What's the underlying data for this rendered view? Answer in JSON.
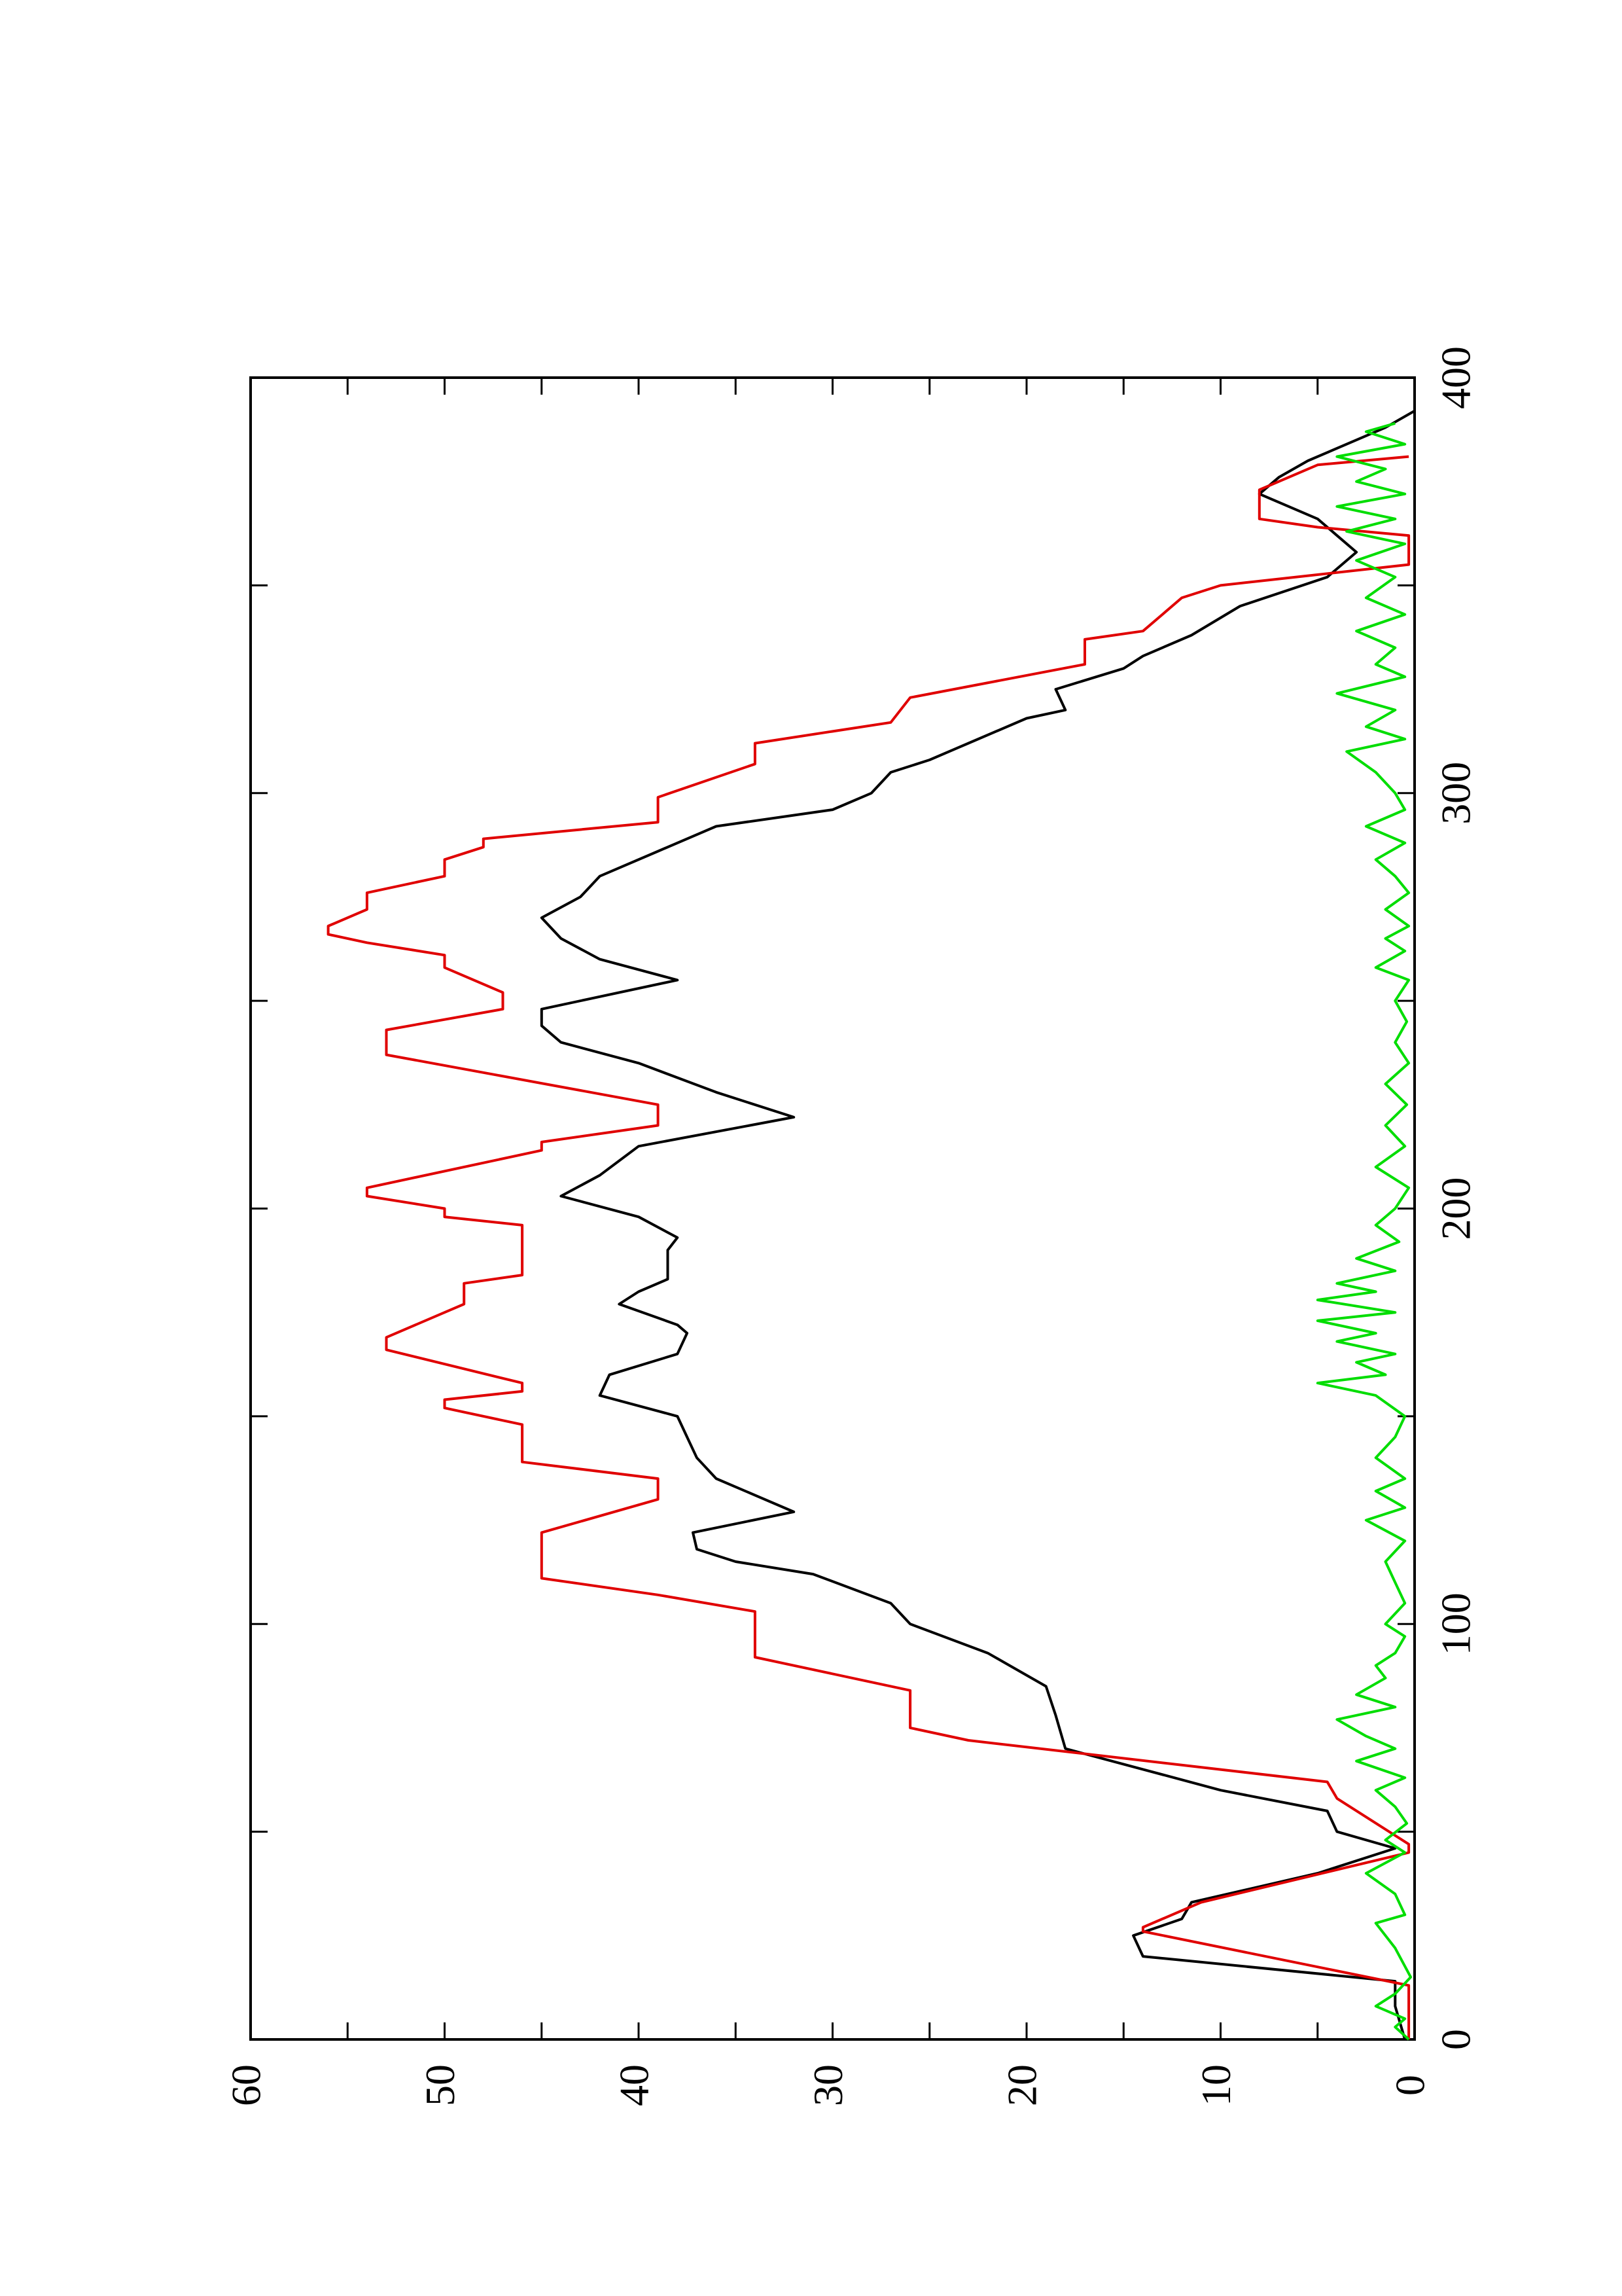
{
  "chart_data": {
    "type": "line",
    "title": "",
    "xlabel": "",
    "ylabel": "",
    "xlim": [
      0,
      400
    ],
    "ylim": [
      0,
      60
    ],
    "x_ticks": [
      "0",
      "100",
      "200",
      "300",
      "400"
    ],
    "y_ticks": [
      "0",
      "10",
      "20",
      "30",
      "40",
      "50",
      "60"
    ],
    "grid": false,
    "legend": "none",
    "orientation_note": "page rotated 90 degrees counter-clockwise",
    "series": [
      {
        "color": "#000000",
        "points": [
          [
            0,
            0.5
          ],
          [
            8,
            1
          ],
          [
            14,
            1
          ],
          [
            20,
            14
          ],
          [
            25,
            14.5
          ],
          [
            29,
            12
          ],
          [
            33,
            11.5
          ],
          [
            40,
            5
          ],
          [
            46,
            1
          ],
          [
            50,
            4
          ],
          [
            55,
            4.5
          ],
          [
            60,
            10
          ],
          [
            65,
            14
          ],
          [
            70,
            18
          ],
          [
            78,
            18.5
          ],
          [
            85,
            19
          ],
          [
            93,
            22
          ],
          [
            100,
            26
          ],
          [
            105,
            27
          ],
          [
            112,
            31
          ],
          [
            115,
            35
          ],
          [
            118,
            37
          ],
          [
            122,
            37.2
          ],
          [
            127,
            32
          ],
          [
            135,
            36
          ],
          [
            140,
            37
          ],
          [
            145,
            37.5
          ],
          [
            150,
            38
          ],
          [
            155,
            42
          ],
          [
            160,
            41.5
          ],
          [
            165,
            38
          ],
          [
            170,
            37.5
          ],
          [
            172,
            38
          ],
          [
            177,
            41
          ],
          [
            180,
            40
          ],
          [
            183,
            38.5
          ],
          [
            190,
            38.5
          ],
          [
            193,
            38
          ],
          [
            198,
            40
          ],
          [
            203,
            44
          ],
          [
            208,
            42
          ],
          [
            215,
            40
          ],
          [
            222,
            32
          ],
          [
            228,
            36
          ],
          [
            235,
            40
          ],
          [
            240,
            44
          ],
          [
            244,
            45
          ],
          [
            248,
            45
          ],
          [
            255,
            38
          ],
          [
            260,
            42
          ],
          [
            265,
            44
          ],
          [
            270,
            45
          ],
          [
            275,
            43
          ],
          [
            280,
            42
          ],
          [
            286,
            39
          ],
          [
            292,
            36
          ],
          [
            296,
            30
          ],
          [
            300,
            28
          ],
          [
            305,
            27
          ],
          [
            308,
            25
          ],
          [
            312,
            23
          ],
          [
            318,
            20
          ],
          [
            320,
            18
          ],
          [
            325,
            18.5
          ],
          [
            330,
            15
          ],
          [
            333,
            14
          ],
          [
            338,
            11.5
          ],
          [
            345,
            9
          ],
          [
            352,
            4.5
          ],
          [
            358,
            3
          ],
          [
            362,
            4
          ],
          [
            366,
            5
          ],
          [
            372,
            8
          ],
          [
            376,
            7
          ],
          [
            380,
            5.5
          ],
          [
            388,
            1.5
          ],
          [
            392,
            0
          ]
        ]
      },
      {
        "color": "#e00000",
        "points": [
          [
            0,
            0.3
          ],
          [
            13,
            0.3
          ],
          [
            26,
            14
          ],
          [
            27,
            14
          ],
          [
            33,
            11
          ],
          [
            45,
            0.3
          ],
          [
            47,
            0.3
          ],
          [
            58,
            4
          ],
          [
            62,
            4.5
          ],
          [
            72,
            23
          ],
          [
            75,
            26
          ],
          [
            84,
            26
          ],
          [
            92,
            34
          ],
          [
            103,
            34
          ],
          [
            107,
            39
          ],
          [
            111,
            45
          ],
          [
            122,
            45
          ],
          [
            130,
            39
          ],
          [
            135,
            39
          ],
          [
            139,
            46
          ],
          [
            148,
            46
          ],
          [
            152,
            50
          ],
          [
            154,
            50
          ],
          [
            156,
            46
          ],
          [
            158,
            46
          ],
          [
            166,
            53
          ],
          [
            169,
            53
          ],
          [
            175,
            50
          ],
          [
            177,
            49
          ],
          [
            182,
            49
          ],
          [
            184,
            46
          ],
          [
            196,
            46
          ],
          [
            198,
            50
          ],
          [
            200,
            50
          ],
          [
            203,
            54
          ],
          [
            205,
            54
          ],
          [
            214,
            45
          ],
          [
            216,
            45
          ],
          [
            220,
            39
          ],
          [
            225,
            39
          ],
          [
            237,
            53
          ],
          [
            243,
            53
          ],
          [
            248,
            47
          ],
          [
            252,
            47
          ],
          [
            258,
            50
          ],
          [
            261,
            50
          ],
          [
            264,
            54
          ],
          [
            266,
            56
          ],
          [
            268,
            56
          ],
          [
            272,
            54
          ],
          [
            276,
            54
          ],
          [
            280,
            50
          ],
          [
            284,
            50
          ],
          [
            287,
            48
          ],
          [
            289,
            48
          ],
          [
            293,
            39
          ],
          [
            299,
            39
          ],
          [
            307,
            34
          ],
          [
            312,
            34
          ],
          [
            317,
            27
          ],
          [
            323,
            26
          ],
          [
            331,
            17
          ],
          [
            337,
            17
          ],
          [
            339,
            14
          ],
          [
            347,
            12
          ],
          [
            350,
            10
          ],
          [
            355,
            0.3
          ],
          [
            362,
            0.3
          ],
          [
            364,
            5
          ],
          [
            366,
            8
          ],
          [
            373,
            8
          ],
          [
            379,
            5
          ],
          [
            381,
            0.3
          ]
        ]
      },
      {
        "color": "#00dd00",
        "points": [
          [
            0,
            0.3
          ],
          [
            3,
            1
          ],
          [
            5,
            0.5
          ],
          [
            8,
            2
          ],
          [
            11,
            1
          ],
          [
            15,
            0.2
          ],
          [
            22,
            1
          ],
          [
            28,
            2
          ],
          [
            30,
            0.5
          ],
          [
            35,
            1
          ],
          [
            40,
            2.5
          ],
          [
            45,
            0.5
          ],
          [
            48,
            1.5
          ],
          [
            52,
            0.4
          ],
          [
            56,
            1
          ],
          [
            60,
            2
          ],
          [
            63,
            0.5
          ],
          [
            67,
            3
          ],
          [
            70,
            1
          ],
          [
            73,
            2.5
          ],
          [
            77,
            4
          ],
          [
            80,
            1
          ],
          [
            83,
            3
          ],
          [
            87,
            1.5
          ],
          [
            90,
            2
          ],
          [
            93,
            1
          ],
          [
            97,
            0.5
          ],
          [
            100,
            1.5
          ],
          [
            105,
            0.5
          ],
          [
            110,
            1
          ],
          [
            115,
            1.5
          ],
          [
            120,
            0.5
          ],
          [
            125,
            2.5
          ],
          [
            128,
            0.5
          ],
          [
            132,
            2
          ],
          [
            135,
            0.5
          ],
          [
            140,
            2
          ],
          [
            145,
            1
          ],
          [
            150,
            0.5
          ],
          [
            155,
            2
          ],
          [
            158,
            5
          ],
          [
            160,
            1.5
          ],
          [
            163,
            3
          ],
          [
            165,
            1
          ],
          [
            168,
            4
          ],
          [
            170,
            2
          ],
          [
            173,
            5
          ],
          [
            175,
            1
          ],
          [
            178,
            5
          ],
          [
            180,
            2
          ],
          [
            182,
            4
          ],
          [
            185,
            1
          ],
          [
            188,
            3
          ],
          [
            192,
            0.8
          ],
          [
            196,
            2
          ],
          [
            200,
            1
          ],
          [
            205,
            0.3
          ],
          [
            210,
            2
          ],
          [
            215,
            0.5
          ],
          [
            220,
            1.5
          ],
          [
            225,
            0.4
          ],
          [
            230,
            1.5
          ],
          [
            235,
            0.3
          ],
          [
            240,
            1
          ],
          [
            245,
            0.4
          ],
          [
            250,
            1
          ],
          [
            255,
            0.3
          ],
          [
            258,
            2
          ],
          [
            262,
            0.5
          ],
          [
            265,
            1.5
          ],
          [
            268,
            0.3
          ],
          [
            272,
            1.5
          ],
          [
            276,
            0.3
          ],
          [
            280,
            1
          ],
          [
            284,
            2
          ],
          [
            288,
            0.5
          ],
          [
            292,
            2.5
          ],
          [
            296,
            0.5
          ],
          [
            300,
            1
          ],
          [
            305,
            2
          ],
          [
            310,
            3.5
          ],
          [
            313,
            0.5
          ],
          [
            316,
            2.5
          ],
          [
            320,
            1
          ],
          [
            324,
            4
          ],
          [
            328,
            0.5
          ],
          [
            331,
            2
          ],
          [
            335,
            1
          ],
          [
            339,
            3
          ],
          [
            343,
            0.5
          ],
          [
            347,
            2.5
          ],
          [
            352,
            1
          ],
          [
            356,
            3
          ],
          [
            360,
            0.5
          ],
          [
            363,
            3.5
          ],
          [
            366,
            1
          ],
          [
            369,
            4
          ],
          [
            372,
            0.5
          ],
          [
            375,
            3
          ],
          [
            378,
            1.5
          ],
          [
            381,
            4
          ],
          [
            384,
            0.5
          ],
          [
            387,
            2.5
          ],
          [
            389,
            1
          ]
        ]
      }
    ]
  }
}
